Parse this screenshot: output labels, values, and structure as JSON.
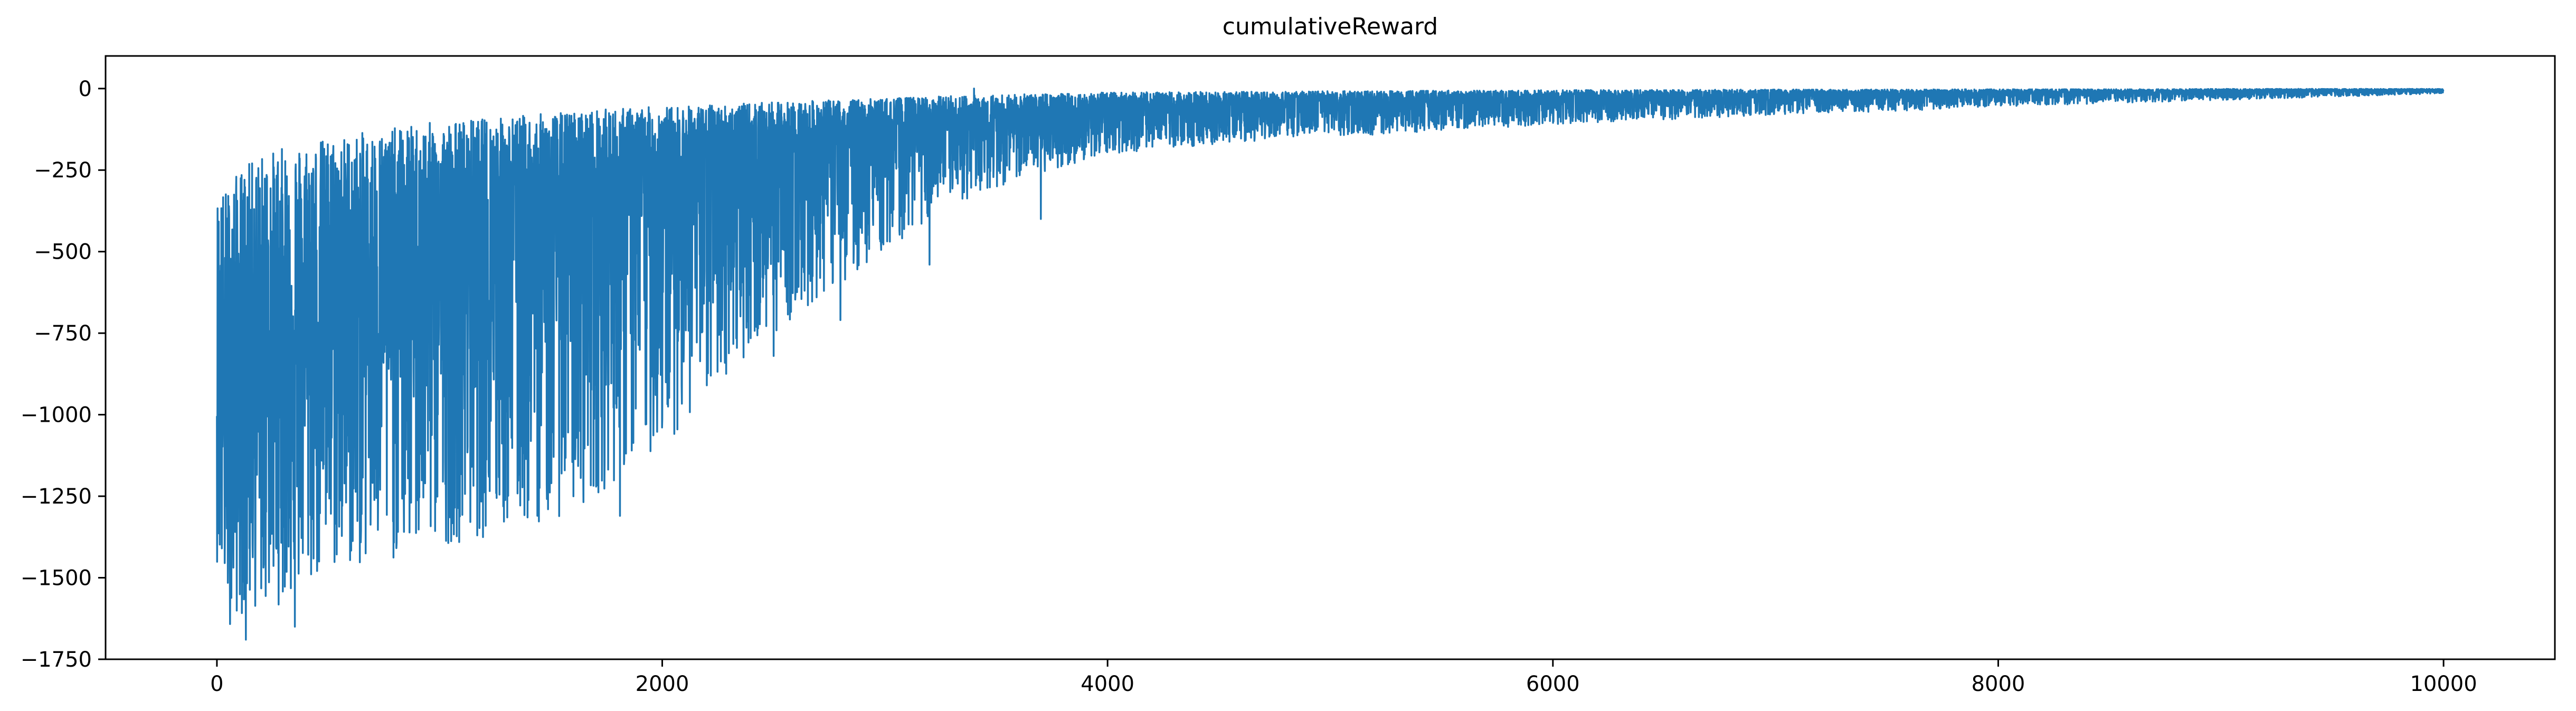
{
  "chart_data": {
    "type": "line",
    "title": "cumulativeReward",
    "xlabel": "",
    "ylabel": "",
    "xlim": [
      -500,
      10500
    ],
    "ylim": [
      -1750,
      100
    ],
    "xticks": [
      0,
      2000,
      4000,
      6000,
      8000,
      10000
    ],
    "yticks": [
      0,
      -250,
      -500,
      -750,
      -1000,
      -1250,
      -1500,
      -1750
    ],
    "grid": false,
    "legend": null,
    "series": [
      {
        "color": "#1f77b4",
        "n_points": 10000,
        "x_range": [
          0,
          10000
        ],
        "envelope": {
          "x": [
            0,
            50,
            100,
            200,
            300,
            400,
            500,
            600,
            800,
            1000,
            1200,
            1400,
            1600,
            1800,
            2000,
            2200,
            2400,
            2600,
            2800,
            3000,
            3200,
            3400,
            3600,
            3800,
            4000,
            4500,
            5000,
            5500,
            6000,
            6500,
            7000,
            7500,
            8000,
            8500,
            9000,
            9500,
            10000
          ],
          "upper": [
            -320,
            -300,
            -250,
            -200,
            -180,
            -160,
            -150,
            -140,
            -120,
            -100,
            -90,
            -80,
            -70,
            -60,
            -55,
            -50,
            -45,
            -40,
            -35,
            -30,
            -25,
            -20,
            -18,
            -15,
            -12,
            -10,
            -8,
            -6,
            -5,
            -4,
            -3,
            -3,
            -2,
            -2,
            -1,
            -1,
            -1
          ],
          "lower": [
            -1450,
            -1650,
            -1620,
            -1600,
            -1580,
            -1550,
            -1500,
            -1480,
            -1450,
            -1400,
            -1380,
            -1350,
            -1300,
            -1200,
            -1100,
            -950,
            -800,
            -700,
            -600,
            -500,
            -400,
            -330,
            -280,
            -240,
            -200,
            -170,
            -150,
            -130,
            -110,
            -95,
            -80,
            -70,
            -55,
            -45,
            -35,
            -25,
            -15
          ],
          "center": [
            -900,
            -950,
            -900,
            -820,
            -760,
            -720,
            -690,
            -660,
            -600,
            -540,
            -480,
            -420,
            -360,
            -310,
            -270,
            -240,
            -210,
            -180,
            -160,
            -140,
            -120,
            -105,
            -95,
            -85,
            -75,
            -60,
            -50,
            -42,
            -35,
            -29,
            -24,
            -20,
            -16,
            -13,
            -10,
            -7,
            -5
          ]
        },
        "notable_points": [
          {
            "x": 130,
            "y": -1690
          },
          {
            "x": 350,
            "y": -1650
          },
          {
            "x": 1810,
            "y": -1310
          },
          {
            "x": 2200,
            "y": -910
          },
          {
            "x": 2500,
            "y": -820
          },
          {
            "x": 2800,
            "y": -710
          },
          {
            "x": 3200,
            "y": -540
          },
          {
            "x": 3400,
            "y": 0
          },
          {
            "x": 3700,
            "y": -400
          }
        ]
      }
    ]
  }
}
